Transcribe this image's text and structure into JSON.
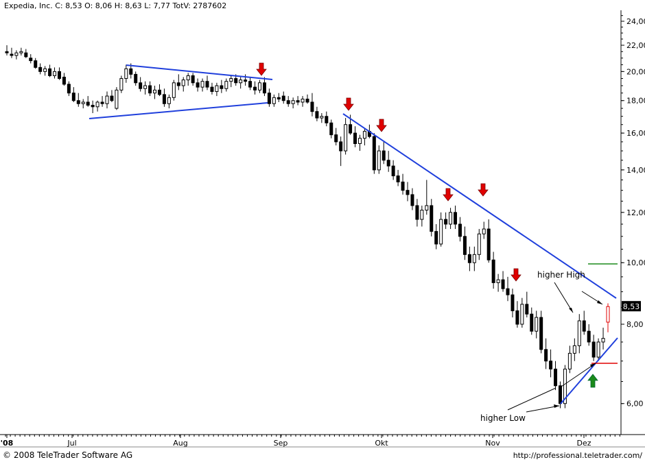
{
  "header": {
    "title": "Expedia, Inc. C: 8,53 O: 8,06 H: 8,63 L: 7,77 TotV: 2787602"
  },
  "footer": {
    "copyright": "© 2008 TeleTrader Software AG",
    "url": "http://professional.teletrader.com/"
  },
  "colors": {
    "up": "#000000",
    "down": "#000000",
    "trendline": "#1f3fdc",
    "arrow_down": "#e00000",
    "arrow_up": "#1a8a1a",
    "last_price_box": "#000000",
    "resistance_line": "#1a8a1a",
    "support_line": "#e00000",
    "last_candle": "#e00000"
  },
  "chart_data": {
    "type": "candlestick",
    "ylim": [
      5.5,
      25.0
    ],
    "y_scale": "log",
    "yticks": [
      "6,00",
      "8,00",
      "10,00",
      "12,00",
      "14,00",
      "16,00",
      "18,00",
      "20,00",
      "22,00",
      "24,00"
    ],
    "ytick_values": [
      6,
      8,
      10,
      12,
      14,
      16,
      18,
      20,
      22,
      24
    ],
    "xticks": [
      "'08",
      "Jul",
      "Aug",
      "Sep",
      "Okt",
      "Nov",
      "Dez"
    ],
    "last_price_label": "8,53",
    "annotations": [
      "higher High",
      "higher Low"
    ],
    "candles": [
      [
        21.5,
        22.0,
        21.2,
        21.4
      ],
      [
        21.3,
        21.8,
        21.0,
        21.2
      ],
      [
        21.2,
        21.6,
        20.9,
        21.4
      ],
      [
        21.4,
        21.8,
        21.2,
        21.5
      ],
      [
        21.4,
        21.7,
        21.0,
        21.1
      ],
      [
        21.0,
        21.3,
        20.6,
        20.8
      ],
      [
        20.8,
        21.0,
        20.2,
        20.3
      ],
      [
        20.3,
        20.6,
        19.8,
        20.0
      ],
      [
        20.0,
        20.4,
        19.7,
        20.2
      ],
      [
        20.2,
        20.5,
        19.6,
        19.7
      ],
      [
        19.7,
        20.3,
        19.5,
        20.0
      ],
      [
        20.0,
        20.3,
        19.4,
        19.5
      ],
      [
        19.6,
        19.9,
        19.0,
        19.1
      ],
      [
        19.1,
        19.3,
        18.3,
        18.5
      ],
      [
        18.5,
        18.9,
        17.9,
        18.0
      ],
      [
        18.0,
        18.5,
        17.6,
        17.8
      ],
      [
        17.8,
        18.1,
        17.5,
        17.9
      ],
      [
        17.9,
        18.3,
        17.6,
        17.7
      ],
      [
        17.7,
        18.0,
        17.2,
        17.6
      ],
      [
        17.6,
        18.0,
        17.3,
        17.9
      ],
      [
        17.9,
        18.3,
        17.6,
        17.8
      ],
      [
        17.8,
        18.6,
        17.5,
        18.3
      ],
      [
        18.3,
        18.7,
        17.9,
        18.0
      ],
      [
        17.5,
        18.9,
        17.4,
        18.7
      ],
      [
        18.7,
        19.7,
        18.5,
        19.5
      ],
      [
        19.5,
        20.5,
        19.2,
        20.2
      ],
      [
        20.2,
        20.6,
        19.5,
        19.8
      ],
      [
        19.8,
        20.0,
        19.0,
        19.2
      ],
      [
        19.2,
        19.6,
        18.6,
        18.8
      ],
      [
        18.8,
        19.3,
        18.4,
        19.0
      ],
      [
        19.0,
        19.3,
        18.3,
        18.5
      ],
      [
        18.5,
        19.0,
        18.1,
        18.7
      ],
      [
        18.7,
        19.1,
        18.3,
        18.4
      ],
      [
        18.4,
        18.8,
        17.6,
        17.8
      ],
      [
        17.8,
        18.4,
        17.5,
        18.2
      ],
      [
        18.2,
        19.4,
        18.0,
        19.2
      ],
      [
        19.2,
        19.8,
        18.7,
        19.0
      ],
      [
        19.0,
        19.6,
        18.6,
        19.4
      ],
      [
        19.4,
        19.9,
        19.0,
        19.7
      ],
      [
        19.7,
        19.9,
        19.0,
        19.2
      ],
      [
        19.2,
        19.5,
        18.6,
        18.9
      ],
      [
        18.9,
        19.5,
        18.6,
        19.3
      ],
      [
        19.3,
        19.7,
        18.7,
        18.9
      ],
      [
        18.9,
        19.2,
        18.4,
        18.6
      ],
      [
        18.6,
        19.2,
        18.3,
        19.0
      ],
      [
        19.0,
        19.4,
        18.5,
        18.8
      ],
      [
        18.8,
        19.5,
        18.6,
        19.3
      ],
      [
        19.3,
        19.7,
        18.9,
        19.5
      ],
      [
        19.5,
        19.8,
        19.0,
        19.2
      ],
      [
        19.2,
        19.6,
        18.8,
        19.4
      ],
      [
        19.4,
        19.8,
        19.0,
        19.3
      ],
      [
        19.3,
        19.6,
        18.7,
        18.9
      ],
      [
        18.9,
        19.3,
        18.4,
        18.7
      ],
      [
        18.7,
        19.4,
        18.5,
        19.2
      ],
      [
        19.2,
        19.6,
        18.3,
        18.5
      ],
      [
        18.5,
        18.8,
        17.6,
        17.8
      ],
      [
        17.8,
        18.4,
        17.6,
        18.2
      ],
      [
        18.2,
        18.5,
        17.9,
        18.1
      ],
      [
        18.3,
        18.6,
        17.8,
        18.0
      ],
      [
        18.0,
        18.3,
        17.6,
        17.8
      ],
      [
        17.8,
        18.2,
        17.5,
        18.0
      ],
      [
        18.0,
        18.3,
        17.7,
        17.9
      ],
      [
        17.9,
        18.3,
        17.6,
        18.1
      ],
      [
        18.1,
        18.4,
        17.8,
        17.9
      ],
      [
        17.9,
        18.5,
        17.0,
        17.3
      ],
      [
        17.3,
        17.6,
        16.7,
        16.9
      ],
      [
        16.9,
        17.2,
        16.6,
        17.0
      ],
      [
        17.0,
        17.3,
        16.4,
        16.6
      ],
      [
        16.6,
        16.8,
        15.7,
        15.9
      ],
      [
        15.9,
        16.3,
        15.3,
        15.5
      ],
      [
        15.5,
        15.8,
        14.2,
        15.0
      ],
      [
        15.0,
        16.9,
        14.8,
        16.5
      ],
      [
        16.5,
        17.1,
        15.9,
        16.0
      ],
      [
        16.0,
        16.4,
        15.2,
        15.4
      ],
      [
        15.4,
        15.9,
        15.0,
        15.7
      ],
      [
        15.7,
        16.3,
        15.3,
        16.1
      ],
      [
        16.1,
        16.5,
        15.7,
        15.8
      ],
      [
        15.8,
        16.0,
        13.8,
        14.0
      ],
      [
        14.0,
        15.3,
        13.8,
        15.0
      ],
      [
        15.0,
        15.5,
        14.3,
        14.5
      ],
      [
        14.5,
        15.0,
        13.9,
        14.2
      ],
      [
        14.2,
        14.5,
        13.5,
        13.7
      ],
      [
        13.7,
        14.0,
        13.2,
        13.4
      ],
      [
        13.4,
        13.8,
        12.8,
        13.0
      ],
      [
        13.0,
        13.4,
        12.5,
        12.8
      ],
      [
        12.8,
        13.1,
        12.1,
        12.3
      ],
      [
        12.3,
        12.6,
        11.4,
        11.7
      ],
      [
        11.7,
        12.3,
        11.4,
        12.1
      ],
      [
        12.1,
        13.5,
        11.9,
        12.3
      ],
      [
        12.3,
        12.6,
        11.0,
        11.2
      ],
      [
        11.2,
        11.5,
        10.5,
        10.7
      ],
      [
        10.7,
        12.0,
        10.6,
        11.7
      ],
      [
        11.7,
        12.0,
        11.3,
        11.5
      ],
      [
        11.5,
        12.2,
        11.3,
        12.0
      ],
      [
        12.0,
        12.3,
        11.3,
        11.5
      ],
      [
        11.5,
        11.8,
        10.8,
        11.0
      ],
      [
        11.0,
        11.4,
        10.1,
        10.3
      ],
      [
        10.3,
        10.6,
        9.7,
        10.0
      ],
      [
        10.0,
        10.6,
        9.7,
        10.3
      ],
      [
        10.3,
        11.3,
        10.1,
        11.1
      ],
      [
        11.1,
        11.6,
        10.9,
        11.3
      ],
      [
        11.3,
        11.7,
        10.0,
        10.1
      ],
      [
        10.1,
        10.4,
        9.1,
        9.3
      ],
      [
        9.3,
        9.6,
        9.0,
        9.4
      ],
      [
        9.4,
        9.7,
        9.0,
        9.1
      ],
      [
        9.1,
        9.5,
        8.7,
        8.9
      ],
      [
        8.9,
        9.1,
        8.2,
        8.4
      ],
      [
        8.4,
        8.7,
        7.9,
        8.0
      ],
      [
        8.0,
        8.8,
        7.9,
        8.6
      ],
      [
        8.6,
        9.0,
        8.2,
        8.3
      ],
      [
        8.3,
        8.5,
        7.7,
        7.8
      ],
      [
        7.8,
        8.4,
        7.6,
        8.2
      ],
      [
        8.2,
        8.4,
        7.2,
        7.3
      ],
      [
        7.3,
        7.6,
        6.8,
        7.0
      ],
      [
        7.0,
        7.3,
        6.6,
        6.8
      ],
      [
        6.8,
        7.0,
        6.3,
        6.4
      ],
      [
        6.4,
        6.5,
        5.9,
        6.0
      ],
      [
        6.0,
        6.9,
        5.9,
        6.8
      ],
      [
        6.8,
        7.4,
        6.7,
        7.2
      ],
      [
        7.2,
        7.6,
        7.0,
        7.4
      ],
      [
        7.4,
        8.3,
        7.2,
        8.1
      ],
      [
        8.1,
        8.4,
        7.7,
        7.8
      ],
      [
        7.8,
        8.0,
        7.4,
        7.5
      ],
      [
        7.5,
        7.7,
        7.0,
        7.1
      ],
      [
        7.1,
        7.6,
        7.0,
        7.5
      ],
      [
        7.5,
        7.9,
        7.3,
        7.6
      ],
      [
        8.06,
        8.63,
        7.77,
        8.53
      ]
    ]
  }
}
